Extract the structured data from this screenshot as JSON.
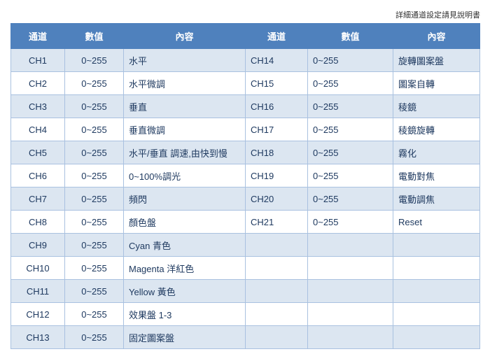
{
  "note": "詳細通道設定請見說明書",
  "headers": [
    "通道",
    "數值",
    "內容",
    "通道",
    "數值",
    "內容"
  ],
  "rows": [
    [
      "CH1",
      "0~255",
      "水平",
      "CH14",
      "0~255",
      "旋轉圖案盤"
    ],
    [
      "CH2",
      "0~255",
      "水平微調",
      "CH15",
      "0~255",
      "圖案自轉"
    ],
    [
      "CH3",
      "0~255",
      "垂直",
      "CH16",
      "0~255",
      "稜鏡"
    ],
    [
      "CH4",
      "0~255",
      "垂直微調",
      "CH17",
      "0~255",
      "稜鏡旋轉"
    ],
    [
      "CH5",
      "0~255",
      "水平/垂直  調速,由快到慢",
      "CH18",
      "0~255",
      "霧化"
    ],
    [
      "CH6",
      "0~255",
      "0~100%調光",
      "CH19",
      "0~255",
      "電動對焦"
    ],
    [
      "CH7",
      "0~255",
      "頻閃",
      "CH20",
      "0~255",
      "電動調焦"
    ],
    [
      "CH8",
      "0~255",
      "顏色盤",
      "CH21",
      "0~255",
      "Reset"
    ],
    [
      "CH9",
      "0~255",
      "Cyan 青色",
      "",
      "",
      ""
    ],
    [
      "CH10",
      "0~255",
      "Magenta 洋紅色",
      "",
      "",
      ""
    ],
    [
      "CH11",
      "0~255",
      "Yellow 黃色",
      "",
      "",
      ""
    ],
    [
      "CH12",
      "0~255",
      "效果盤 1-3",
      "",
      "",
      ""
    ],
    [
      "CH13",
      "0~255",
      "固定圖案盤",
      "",
      "",
      ""
    ]
  ],
  "colors": {
    "header": "#4f81bd",
    "row_alt": "#dce6f1"
  }
}
